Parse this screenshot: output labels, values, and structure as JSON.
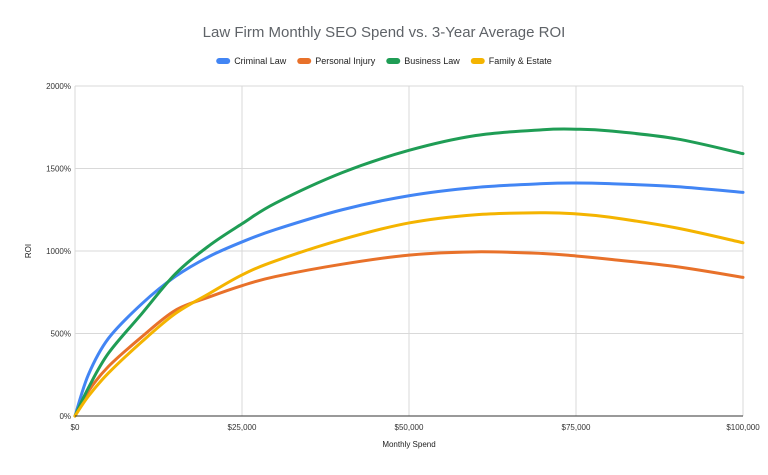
{
  "chart_data": {
    "type": "line",
    "title": "Law Firm Monthly SEO Spend vs.  3-Year Average ROI",
    "xlabel": "Monthly Spend",
    "ylabel": "ROI",
    "xlim": [
      0,
      100000
    ],
    "ylim": [
      0,
      2000
    ],
    "x_ticks": [
      0,
      25000,
      50000,
      75000,
      100000
    ],
    "x_tick_labels": [
      "$0",
      "$25,000",
      "$50,000",
      "$75,000",
      "$100,000"
    ],
    "y_ticks": [
      0,
      500,
      1000,
      1500,
      2000
    ],
    "y_tick_labels": [
      "0%",
      "500%",
      "1000%",
      "1500%",
      "2000%"
    ],
    "grid": true,
    "legend_position": "top",
    "x": [
      0,
      2000,
      5000,
      10000,
      15000,
      20000,
      25000,
      30000,
      40000,
      50000,
      60000,
      70000,
      75000,
      80000,
      90000,
      100000
    ],
    "series": [
      {
        "name": "Criminal Law",
        "color": "#4285f4",
        "values": [
          0,
          250,
          470,
          680,
          845,
          965,
          1055,
          1130,
          1250,
          1335,
          1385,
          1408,
          1412,
          1408,
          1390,
          1355
        ]
      },
      {
        "name": "Personal Injury",
        "color": "#e8712a",
        "values": [
          0,
          150,
          300,
          480,
          640,
          720,
          790,
          845,
          920,
          975,
          995,
          985,
          970,
          950,
          905,
          840
        ]
      },
      {
        "name": "Business Law",
        "color": "#1f9d55",
        "values": [
          0,
          170,
          380,
          620,
          860,
          1030,
          1165,
          1290,
          1475,
          1610,
          1700,
          1735,
          1738,
          1728,
          1680,
          1590
        ]
      },
      {
        "name": "Family & Estate",
        "color": "#f4b400",
        "values": [
          0,
          120,
          260,
          450,
          620,
          740,
          855,
          940,
          1070,
          1170,
          1220,
          1232,
          1225,
          1205,
          1140,
          1050
        ]
      }
    ]
  }
}
